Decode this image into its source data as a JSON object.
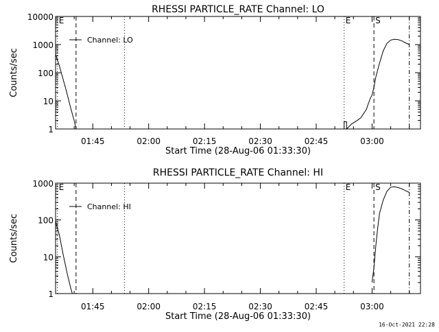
{
  "footer_timestamp": "16-Oct-2021 22:28",
  "chart_data": [
    {
      "type": "line",
      "title": "RHESSI PARTICLE_RATE Channel: LO",
      "xlabel": "Start Time (28-Aug-06 01:33:30)",
      "ylabel": "Counts/sec",
      "yscale": "log",
      "ylim": [
        1,
        10000
      ],
      "xlim": [
        "01:35:00",
        "03:13:00"
      ],
      "x_ticks": [
        "01:45",
        "02:00",
        "02:15",
        "02:30",
        "02:45",
        "03:00"
      ],
      "y_ticks": [
        "1",
        "10",
        "100",
        "1000",
        "10000"
      ],
      "legend": {
        "label": "Channel: LO",
        "placement": "top-left"
      },
      "markers": [
        {
          "label": "E",
          "time": "01:35:30",
          "style": "dotted"
        },
        {
          "label": "",
          "time": "01:40:30",
          "style": "dashed"
        },
        {
          "label": "",
          "time": "01:53:30",
          "style": "dotted"
        },
        {
          "label": "E",
          "time": "02:52:30",
          "style": "dotted"
        },
        {
          "label": "S",
          "time": "03:00:30",
          "style": "dashed"
        },
        {
          "label": "",
          "time": "03:10:00",
          "style": "dash-dot"
        }
      ],
      "series": [
        {
          "name": "",
          "x": [
            "01:35:00",
            "01:36:00",
            "01:37:00",
            "01:38:00",
            "01:39:00",
            "01:40:00",
            "01:40:30"
          ],
          "y": [
            450,
            180,
            60,
            20,
            6,
            2,
            1
          ]
        },
        {
          "name": "",
          "x": [
            "02:52:30",
            "02:52:30",
            "02:53:10",
            "02:53:10",
            "02:54:30",
            "02:56:00",
            "02:57:00",
            "02:58:00",
            "02:58:30",
            "02:59:00",
            "02:59:30",
            "03:00:00",
            "03:00:30",
            "03:01:00",
            "03:02:00",
            "03:03:00",
            "03:04:00",
            "03:05:00",
            "03:06:00",
            "03:07:00",
            "03:08:00",
            "03:09:00",
            "03:10:00"
          ],
          "y": [
            1,
            1.8,
            1.8,
            1,
            1.5,
            2,
            2.5,
            4,
            5,
            8,
            12,
            16,
            30,
            70,
            220,
            600,
            1100,
            1450,
            1550,
            1500,
            1350,
            1150,
            1000
          ]
        }
      ]
    },
    {
      "type": "line",
      "title": "RHESSI PARTICLE_RATE Channel: HI",
      "xlabel": "Start Time (28-Aug-06 01:33:30)",
      "ylabel": "Counts/sec",
      "yscale": "log",
      "ylim": [
        1,
        1000
      ],
      "xlim": [
        "01:35:00",
        "03:13:00"
      ],
      "x_ticks": [
        "01:45",
        "02:00",
        "02:15",
        "02:30",
        "02:45",
        "03:00"
      ],
      "y_ticks": [
        "1",
        "10",
        "100",
        "1000"
      ],
      "legend": {
        "label": "Channel: HI",
        "placement": "top-left"
      },
      "markers": [
        {
          "label": "E",
          "time": "01:35:30",
          "style": "dotted"
        },
        {
          "label": "",
          "time": "01:40:30",
          "style": "dashed"
        },
        {
          "label": "",
          "time": "01:53:30",
          "style": "dotted"
        },
        {
          "label": "E",
          "time": "02:52:30",
          "style": "dotted"
        },
        {
          "label": "S",
          "time": "03:00:30",
          "style": "dashed"
        },
        {
          "label": "",
          "time": "03:10:00",
          "style": "dash-dot"
        }
      ],
      "series": [
        {
          "name": "",
          "x": [
            "01:35:00",
            "01:36:00",
            "01:37:00",
            "01:38:00",
            "01:39:00",
            "01:39:30"
          ],
          "y": [
            90,
            40,
            12,
            4,
            1.5,
            1
          ]
        },
        {
          "name": "",
          "x": [
            "03:00:00",
            "03:00:30",
            "03:01:00",
            "03:01:30",
            "03:02:00",
            "03:03:00",
            "03:04:00",
            "03:05:00",
            "03:06:00",
            "03:07:00",
            "03:08:00",
            "03:09:00",
            "03:10:00"
          ],
          "y": [
            2,
            5,
            20,
            60,
            150,
            350,
            600,
            780,
            800,
            760,
            700,
            620,
            560
          ]
        }
      ]
    }
  ]
}
